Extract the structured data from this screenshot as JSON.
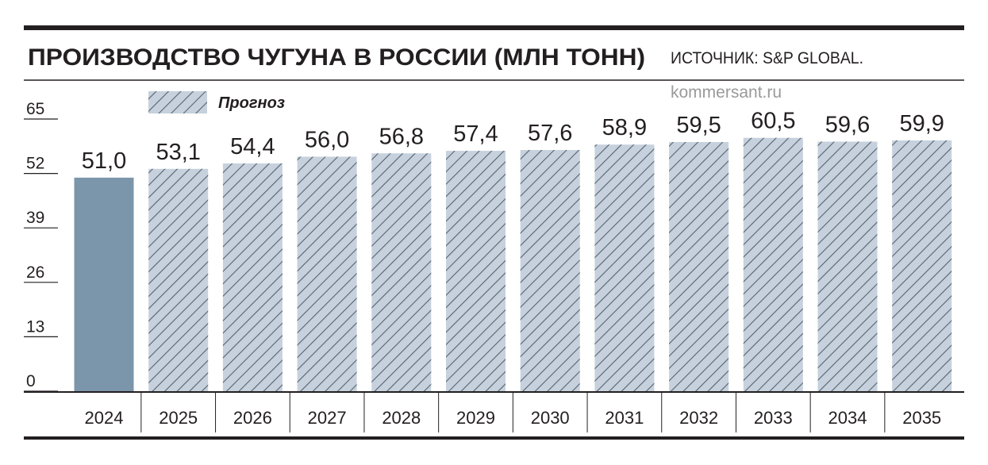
{
  "chart_data": {
    "type": "bar",
    "title": "ПРОИЗВОДСТВО ЧУГУНА В РОССИИ (МЛН ТОНН)",
    "source": "ИСТОЧНИК: S&P GLOBAL.",
    "watermark": "kommersant.ru",
    "categories": [
      "2024",
      "2025",
      "2026",
      "2027",
      "2028",
      "2029",
      "2030",
      "2031",
      "2032",
      "2033",
      "2034",
      "2035"
    ],
    "series": [
      {
        "color": "#7b96ab",
        "values": [
          51.0,
          null,
          null,
          null,
          null,
          null,
          null,
          null,
          null,
          null,
          null,
          null
        ],
        "value_labels": [
          "51,0",
          null,
          null,
          null,
          null,
          null,
          null,
          null,
          null,
          null,
          null,
          null
        ]
      },
      {
        "name": "Прогноз",
        "color": "#c6d1dd",
        "hatch": true,
        "values": [
          null,
          53.1,
          54.4,
          56.0,
          56.8,
          57.4,
          57.6,
          58.9,
          59.5,
          60.5,
          59.6,
          59.9
        ],
        "value_labels": [
          null,
          "53,1",
          "54,4",
          "56,0",
          "56,8",
          "57,4",
          "57,6",
          "58,9",
          "59,5",
          "60,5",
          "59,6",
          "59,9"
        ]
      }
    ],
    "ylim": [
      0,
      65
    ],
    "yticks": [
      0,
      13,
      26,
      39,
      52,
      65
    ]
  }
}
